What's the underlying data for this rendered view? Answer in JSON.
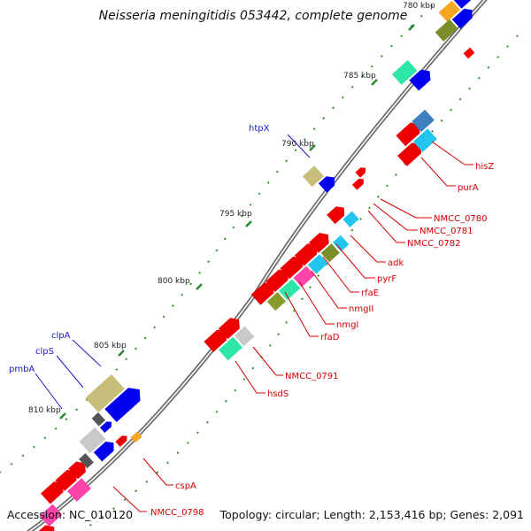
{
  "title": "Neisseria meningitidis 053442, complete genome",
  "footer": {
    "accession": "Accession: NC_010120",
    "summary": "Topology: circular; Length: 2,153,416 bp; Genes: 2,091"
  },
  "colors": {
    "backbone": "#7a7a7a",
    "red_label": "#d40000",
    "blue_label": "#1a1acc",
    "tick": "#2a8a2a"
  },
  "ticks": [
    {
      "label": "780 kbp"
    },
    {
      "label": "785 kbp"
    },
    {
      "label": "790 kbp"
    },
    {
      "label": "795 kbp"
    },
    {
      "label": "800 kbp"
    },
    {
      "label": "805 kbp"
    },
    {
      "label": "810 kbp"
    }
  ],
  "genes": [
    {
      "name": "htpX",
      "group": "blue"
    },
    {
      "name": "hisZ",
      "group": "red"
    },
    {
      "name": "purA",
      "group": "red"
    },
    {
      "name": "NMCC_0780",
      "group": "red"
    },
    {
      "name": "NMCC_0781",
      "group": "red"
    },
    {
      "name": "NMCC_0782",
      "group": "red"
    },
    {
      "name": "adk",
      "group": "red"
    },
    {
      "name": "pyrF",
      "group": "red"
    },
    {
      "name": "rfaE",
      "group": "red"
    },
    {
      "name": "nmgII",
      "group": "red"
    },
    {
      "name": "nmgI",
      "group": "red"
    },
    {
      "name": "rfaD",
      "group": "red"
    },
    {
      "name": "NMCC_0791",
      "group": "red"
    },
    {
      "name": "hsdS",
      "group": "red"
    },
    {
      "name": "clpA",
      "group": "blue"
    },
    {
      "name": "clpS",
      "group": "blue"
    },
    {
      "name": "pmbA",
      "group": "blue"
    },
    {
      "name": "cspA",
      "group": "red"
    },
    {
      "name": "NMCC_0798",
      "group": "red"
    }
  ]
}
